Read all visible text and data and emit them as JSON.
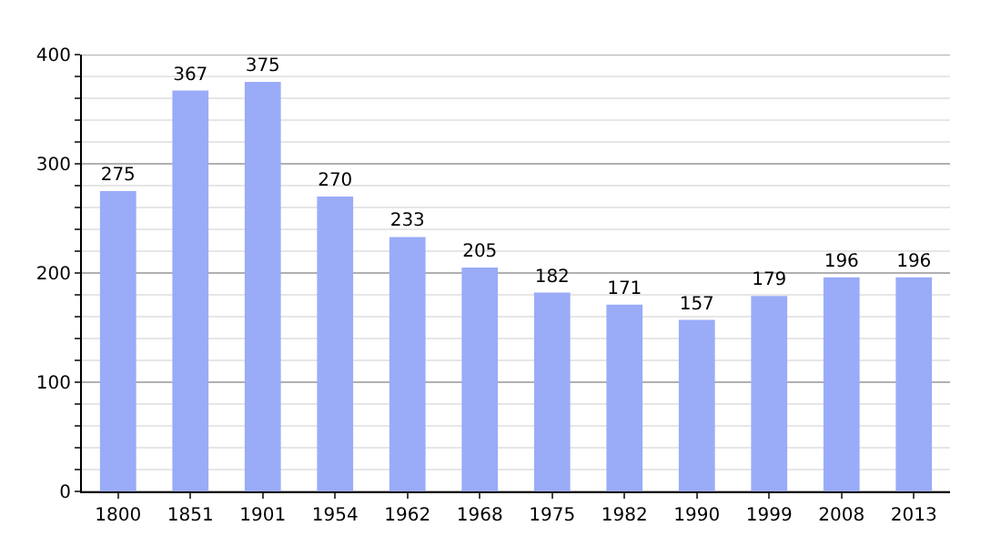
{
  "chart_data": {
    "type": "bar",
    "categories": [
      "1800",
      "1851",
      "1901",
      "1954",
      "1962",
      "1968",
      "1975",
      "1982",
      "1990",
      "1999",
      "2008",
      "2013"
    ],
    "values": [
      275,
      367,
      375,
      270,
      233,
      205,
      182,
      171,
      157,
      179,
      196,
      196
    ],
    "color": "#9aabf8",
    "data_labels": true,
    "grid": "y",
    "ylim": [
      0,
      400
    ],
    "yticks": [
      0,
      {
        "value": 20,
        "label": null
      },
      {
        "value": 40,
        "label": null
      },
      {
        "value": 60,
        "label": null
      },
      {
        "value": 80,
        "label": null
      },
      100,
      {
        "value": 120,
        "label": null
      },
      {
        "value": 140,
        "label": null
      },
      {
        "value": 160,
        "label": null
      },
      {
        "value": 180,
        "label": null
      },
      200,
      {
        "value": 220,
        "label": null
      },
      {
        "value": 240,
        "label": null
      },
      {
        "value": 260,
        "label": null
      },
      {
        "value": 280,
        "label": null
      },
      300,
      {
        "value": 320,
        "label": null
      },
      {
        "value": 340,
        "label": null
      },
      {
        "value": 360,
        "label": null
      },
      {
        "value": 380,
        "label": null
      },
      400
    ]
  }
}
